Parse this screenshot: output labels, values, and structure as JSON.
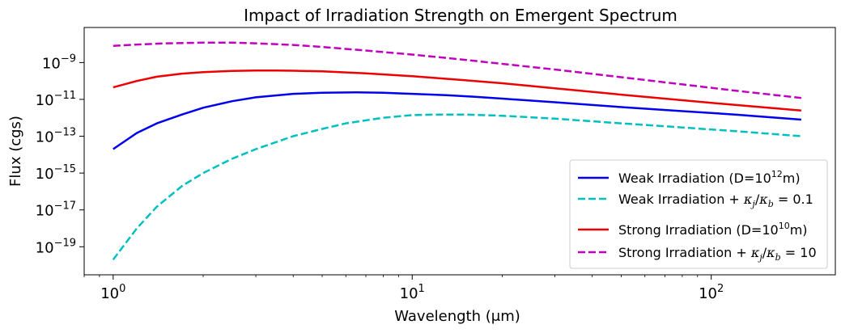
{
  "chart_data": {
    "type": "line",
    "title": "Impact of Irradiation Strength on Emergent Spectrum",
    "xlabel": "Wavelength (μm)",
    "ylabel": "Flux (cgs)",
    "xscale": "log",
    "yscale": "log",
    "xlim": [
      0.8,
      260
    ],
    "ylim": [
      3e-21,
      8e-08
    ],
    "x_ticks": [
      1,
      10,
      100
    ],
    "x_tick_labels": [
      "10",
      "10",
      "10"
    ],
    "x_tick_exponents": [
      "0",
      "1",
      "2"
    ],
    "y_ticks": [
      1e-19,
      1e-17,
      1e-15,
      1e-13,
      1e-11,
      1e-09
    ],
    "y_tick_labels": [
      "10",
      "10",
      "10",
      "10",
      "10",
      "10"
    ],
    "y_tick_exponents": [
      "−19",
      "−17",
      "−15",
      "−13",
      "−11",
      "−9"
    ],
    "grid": false,
    "legend_position": "bottom-right",
    "series": [
      {
        "name": "Weak Irradiation (D=10^12m)",
        "legend_prefix": "Weak Irradiation (D=10",
        "legend_sup": "12",
        "legend_suffix": "m)",
        "color": "#0000ee",
        "dash": "solid",
        "x": [
          1,
          1.2,
          1.4,
          1.7,
          2,
          2.5,
          3,
          4,
          5,
          6.5,
          8,
          10,
          13,
          16,
          20,
          30,
          50,
          80,
          120,
          200
        ],
        "y": [
          2e-14,
          1.5e-13,
          5e-13,
          1.5e-12,
          3.5e-12,
          8e-12,
          1.3e-11,
          2e-11,
          2.3e-11,
          2.4e-11,
          2.3e-11,
          2e-11,
          1.7e-11,
          1.4e-11,
          1.1e-11,
          7e-12,
          3.8e-12,
          2.3e-12,
          1.5e-12,
          8e-13
        ]
      },
      {
        "name": "Weak Irradiation + κj/κb = 0.1",
        "legend_prefix": "Weak Irradiation + ",
        "kappa_ratio": "0.1",
        "color": "#00bfbf",
        "dash": "dashed",
        "x": [
          1,
          1.2,
          1.4,
          1.7,
          2,
          2.5,
          3,
          4,
          5,
          6,
          8,
          10,
          12,
          15,
          20,
          30,
          50,
          80,
          120,
          200
        ],
        "y": [
          2e-20,
          1e-18,
          1.5e-17,
          2e-16,
          1e-15,
          6e-15,
          2e-14,
          1e-13,
          2.5e-13,
          5e-13,
          1e-12,
          1.4e-12,
          1.5e-12,
          1.5e-12,
          1.3e-12,
          9e-13,
          5e-13,
          3e-13,
          1.9e-13,
          1e-13
        ]
      },
      {
        "name": "Strong Irradiation (D=10^10m)",
        "legend_prefix": "Strong Irradiation (D=10",
        "legend_sup": "10",
        "legend_suffix": "m)",
        "color": "#ee0000",
        "dash": "solid",
        "x": [
          1,
          1.2,
          1.4,
          1.7,
          2,
          2.5,
          3,
          3.5,
          4,
          5,
          7,
          10,
          15,
          20,
          30,
          50,
          80,
          120,
          200
        ],
        "y": [
          4.5e-11,
          1e-10,
          1.7e-10,
          2.5e-10,
          3e-10,
          3.5e-10,
          3.7e-10,
          3.7e-10,
          3.6e-10,
          3.3e-10,
          2.6e-10,
          1.8e-10,
          1.1e-10,
          7.5e-11,
          4e-11,
          1.8e-11,
          9e-12,
          5e-12,
          2.5e-12
        ]
      },
      {
        "name": "Strong Irradiation + κj/κb = 10",
        "legend_prefix": "Strong Irradiation + ",
        "kappa_ratio": "10",
        "color": "#bf00bf",
        "dash": "dashed",
        "x": [
          1,
          1.2,
          1.5,
          2,
          2.5,
          3,
          4,
          5,
          7,
          10,
          15,
          20,
          30,
          50,
          80,
          120,
          200
        ],
        "y": [
          8e-09,
          9.5e-09,
          1.1e-08,
          1.2e-08,
          1.2e-08,
          1.1e-08,
          9e-09,
          7e-09,
          4.5e-09,
          2.7e-09,
          1.4e-09,
          8.5e-10,
          4.2e-10,
          1.6e-10,
          6.5e-11,
          3e-11,
          1.2e-11
        ]
      }
    ]
  }
}
